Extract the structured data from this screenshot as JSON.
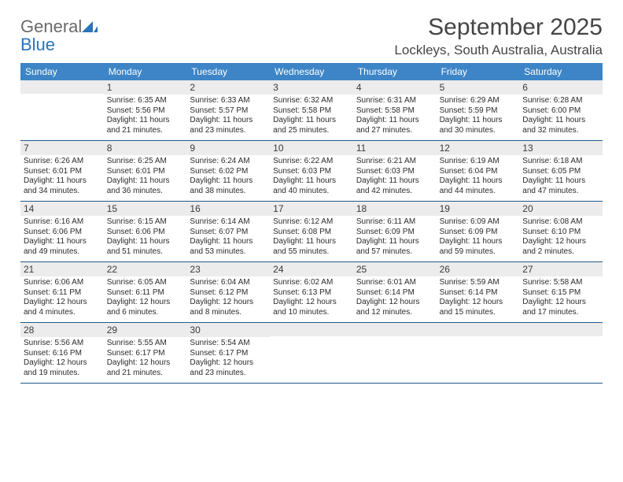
{
  "logo": {
    "word1": "General",
    "word2": "Blue"
  },
  "title": "September 2025",
  "location": "Lockleys, South Australia, Australia",
  "colors": {
    "header_bg": "#3d85c6",
    "header_text": "#ffffff",
    "row_border": "#21598a",
    "datebar_bg": "#ececec",
    "page_bg": "#ffffff",
    "body_text": "#2b2b2b"
  },
  "day_names": [
    "Sunday",
    "Monday",
    "Tuesday",
    "Wednesday",
    "Thursday",
    "Friday",
    "Saturday"
  ],
  "weeks": [
    [
      {
        "date": "",
        "sunrise": "",
        "sunset": "",
        "daylight": ""
      },
      {
        "date": "1",
        "sunrise": "Sunrise: 6:35 AM",
        "sunset": "Sunset: 5:56 PM",
        "daylight": "Daylight: 11 hours and 21 minutes."
      },
      {
        "date": "2",
        "sunrise": "Sunrise: 6:33 AM",
        "sunset": "Sunset: 5:57 PM",
        "daylight": "Daylight: 11 hours and 23 minutes."
      },
      {
        "date": "3",
        "sunrise": "Sunrise: 6:32 AM",
        "sunset": "Sunset: 5:58 PM",
        "daylight": "Daylight: 11 hours and 25 minutes."
      },
      {
        "date": "4",
        "sunrise": "Sunrise: 6:31 AM",
        "sunset": "Sunset: 5:58 PM",
        "daylight": "Daylight: 11 hours and 27 minutes."
      },
      {
        "date": "5",
        "sunrise": "Sunrise: 6:29 AM",
        "sunset": "Sunset: 5:59 PM",
        "daylight": "Daylight: 11 hours and 30 minutes."
      },
      {
        "date": "6",
        "sunrise": "Sunrise: 6:28 AM",
        "sunset": "Sunset: 6:00 PM",
        "daylight": "Daylight: 11 hours and 32 minutes."
      }
    ],
    [
      {
        "date": "7",
        "sunrise": "Sunrise: 6:26 AM",
        "sunset": "Sunset: 6:01 PM",
        "daylight": "Daylight: 11 hours and 34 minutes."
      },
      {
        "date": "8",
        "sunrise": "Sunrise: 6:25 AM",
        "sunset": "Sunset: 6:01 PM",
        "daylight": "Daylight: 11 hours and 36 minutes."
      },
      {
        "date": "9",
        "sunrise": "Sunrise: 6:24 AM",
        "sunset": "Sunset: 6:02 PM",
        "daylight": "Daylight: 11 hours and 38 minutes."
      },
      {
        "date": "10",
        "sunrise": "Sunrise: 6:22 AM",
        "sunset": "Sunset: 6:03 PM",
        "daylight": "Daylight: 11 hours and 40 minutes."
      },
      {
        "date": "11",
        "sunrise": "Sunrise: 6:21 AM",
        "sunset": "Sunset: 6:03 PM",
        "daylight": "Daylight: 11 hours and 42 minutes."
      },
      {
        "date": "12",
        "sunrise": "Sunrise: 6:19 AM",
        "sunset": "Sunset: 6:04 PM",
        "daylight": "Daylight: 11 hours and 44 minutes."
      },
      {
        "date": "13",
        "sunrise": "Sunrise: 6:18 AM",
        "sunset": "Sunset: 6:05 PM",
        "daylight": "Daylight: 11 hours and 47 minutes."
      }
    ],
    [
      {
        "date": "14",
        "sunrise": "Sunrise: 6:16 AM",
        "sunset": "Sunset: 6:06 PM",
        "daylight": "Daylight: 11 hours and 49 minutes."
      },
      {
        "date": "15",
        "sunrise": "Sunrise: 6:15 AM",
        "sunset": "Sunset: 6:06 PM",
        "daylight": "Daylight: 11 hours and 51 minutes."
      },
      {
        "date": "16",
        "sunrise": "Sunrise: 6:14 AM",
        "sunset": "Sunset: 6:07 PM",
        "daylight": "Daylight: 11 hours and 53 minutes."
      },
      {
        "date": "17",
        "sunrise": "Sunrise: 6:12 AM",
        "sunset": "Sunset: 6:08 PM",
        "daylight": "Daylight: 11 hours and 55 minutes."
      },
      {
        "date": "18",
        "sunrise": "Sunrise: 6:11 AM",
        "sunset": "Sunset: 6:09 PM",
        "daylight": "Daylight: 11 hours and 57 minutes."
      },
      {
        "date": "19",
        "sunrise": "Sunrise: 6:09 AM",
        "sunset": "Sunset: 6:09 PM",
        "daylight": "Daylight: 11 hours and 59 minutes."
      },
      {
        "date": "20",
        "sunrise": "Sunrise: 6:08 AM",
        "sunset": "Sunset: 6:10 PM",
        "daylight": "Daylight: 12 hours and 2 minutes."
      }
    ],
    [
      {
        "date": "21",
        "sunrise": "Sunrise: 6:06 AM",
        "sunset": "Sunset: 6:11 PM",
        "daylight": "Daylight: 12 hours and 4 minutes."
      },
      {
        "date": "22",
        "sunrise": "Sunrise: 6:05 AM",
        "sunset": "Sunset: 6:11 PM",
        "daylight": "Daylight: 12 hours and 6 minutes."
      },
      {
        "date": "23",
        "sunrise": "Sunrise: 6:04 AM",
        "sunset": "Sunset: 6:12 PM",
        "daylight": "Daylight: 12 hours and 8 minutes."
      },
      {
        "date": "24",
        "sunrise": "Sunrise: 6:02 AM",
        "sunset": "Sunset: 6:13 PM",
        "daylight": "Daylight: 12 hours and 10 minutes."
      },
      {
        "date": "25",
        "sunrise": "Sunrise: 6:01 AM",
        "sunset": "Sunset: 6:14 PM",
        "daylight": "Daylight: 12 hours and 12 minutes."
      },
      {
        "date": "26",
        "sunrise": "Sunrise: 5:59 AM",
        "sunset": "Sunset: 6:14 PM",
        "daylight": "Daylight: 12 hours and 15 minutes."
      },
      {
        "date": "27",
        "sunrise": "Sunrise: 5:58 AM",
        "sunset": "Sunset: 6:15 PM",
        "daylight": "Daylight: 12 hours and 17 minutes."
      }
    ],
    [
      {
        "date": "28",
        "sunrise": "Sunrise: 5:56 AM",
        "sunset": "Sunset: 6:16 PM",
        "daylight": "Daylight: 12 hours and 19 minutes."
      },
      {
        "date": "29",
        "sunrise": "Sunrise: 5:55 AM",
        "sunset": "Sunset: 6:17 PM",
        "daylight": "Daylight: 12 hours and 21 minutes."
      },
      {
        "date": "30",
        "sunrise": "Sunrise: 5:54 AM",
        "sunset": "Sunset: 6:17 PM",
        "daylight": "Daylight: 12 hours and 23 minutes."
      },
      {
        "date": "",
        "sunrise": "",
        "sunset": "",
        "daylight": ""
      },
      {
        "date": "",
        "sunrise": "",
        "sunset": "",
        "daylight": ""
      },
      {
        "date": "",
        "sunrise": "",
        "sunset": "",
        "daylight": ""
      },
      {
        "date": "",
        "sunrise": "",
        "sunset": "",
        "daylight": ""
      }
    ]
  ]
}
